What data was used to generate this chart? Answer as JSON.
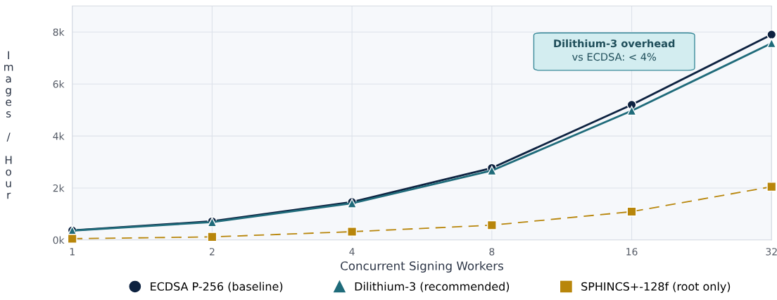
{
  "chart_data": {
    "type": "line",
    "xlabel": "Concurrent Signing Workers",
    "ylabel": "Images / Hour",
    "x": [
      1,
      2,
      4,
      8,
      16,
      32
    ],
    "log": "x",
    "xlim": [
      1,
      32
    ],
    "xticks": [
      1,
      2,
      4,
      8,
      16,
      32
    ],
    "ylim": [
      0,
      9000
    ],
    "yticks": [
      {
        "value": 0,
        "label": "0k"
      },
      {
        "value": 2000,
        "label": "2k"
      },
      {
        "value": 4000,
        "label": "4k"
      },
      {
        "value": 6000,
        "label": "6k"
      },
      {
        "value": 8000,
        "label": "8k"
      }
    ],
    "grid": true,
    "legend": "bottom",
    "series": [
      {
        "name": "ECDSA P-256 (baseline)",
        "color": "#0d2240",
        "marker": "circle",
        "line_style": "solid",
        "values": [
          370,
          720,
          1460,
          2770,
          5200,
          7900
        ]
      },
      {
        "name": "Dilithium-3 (recommended)",
        "color": "#1f6b7a",
        "marker": "triangle",
        "line_style": "solid",
        "values": [
          360,
          690,
          1410,
          2670,
          4970,
          7570
        ]
      },
      {
        "name": "SPHINCS+-128f (root only)",
        "color": "#b8860b",
        "marker": "square",
        "line_style": "dashed",
        "values": [
          50,
          120,
          320,
          570,
          1090,
          2050
        ]
      }
    ],
    "annotations": [
      "Dilithium-3 overhead",
      "vs ECDSA: < 4%"
    ]
  }
}
